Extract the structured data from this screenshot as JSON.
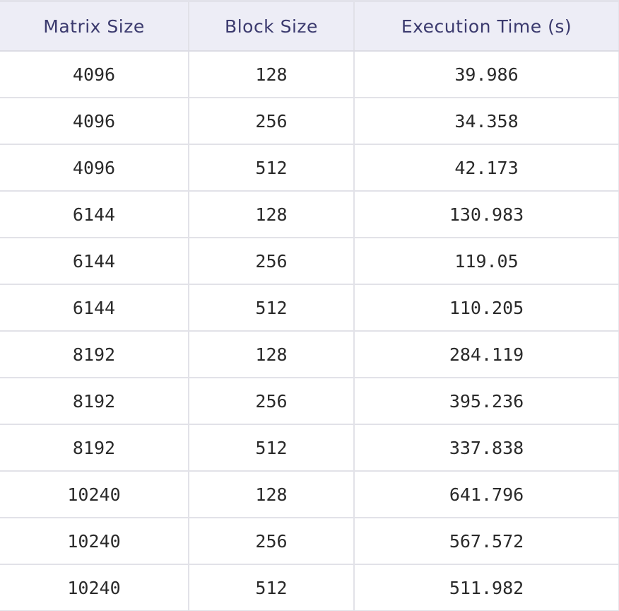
{
  "table": {
    "headers": [
      "Matrix Size",
      "Block Size",
      "Execution Time (s)"
    ],
    "rows": [
      [
        "4096",
        "128",
        "39.986"
      ],
      [
        "4096",
        "256",
        "34.358"
      ],
      [
        "4096",
        "512",
        "42.173"
      ],
      [
        "6144",
        "128",
        "130.983"
      ],
      [
        "6144",
        "256",
        "119.05"
      ],
      [
        "6144",
        "512",
        "110.205"
      ],
      [
        "8192",
        "128",
        "284.119"
      ],
      [
        "8192",
        "256",
        "395.236"
      ],
      [
        "8192",
        "512",
        "337.838"
      ],
      [
        "10240",
        "128",
        "641.796"
      ],
      [
        "10240",
        "256",
        "567.572"
      ],
      [
        "10240",
        "512",
        "511.982"
      ]
    ]
  }
}
